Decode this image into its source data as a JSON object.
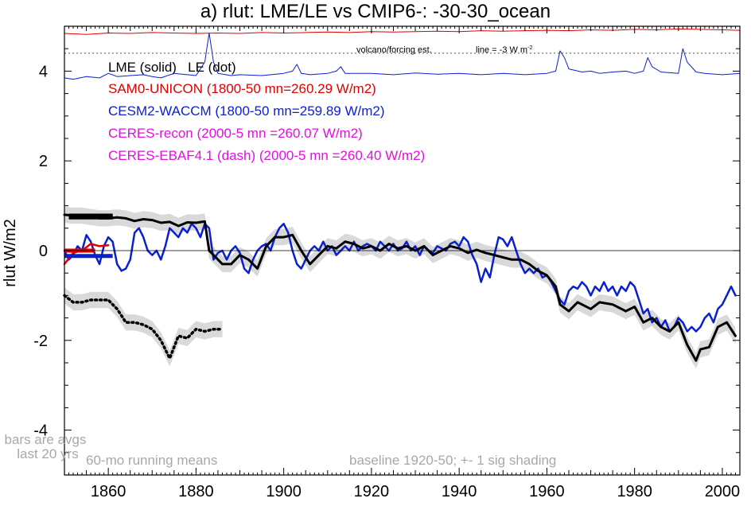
{
  "chart_data": {
    "type": "line",
    "title": "a) rlut: LME/LE vs CMIP6-: -30-30_ocean",
    "ylabel": "rlut W/m2",
    "xlabel": "",
    "xlim": [
      1850,
      2004
    ],
    "ylim": [
      -5,
      5
    ],
    "x_ticks": [
      1860,
      1880,
      1900,
      1920,
      1940,
      1960,
      1980,
      2000
    ],
    "y_ticks": [
      -4,
      -2,
      0,
      2,
      4
    ],
    "y_tick_labels": [
      "-4",
      "-2",
      "0",
      "2",
      "4"
    ],
    "grid": false,
    "legend": [
      {
        "label": "LME (solid)   LE (dot)",
        "color": "#000000"
      },
      {
        "label": "SAM0-UNICON (1800-50 mn=260.29 W/m2)",
        "color": "#e00000"
      },
      {
        "label": "CESM2-WACCM (1800-50 mn=259.89 W/m2)",
        "color": "#0a1fd0"
      },
      {
        "label": "CERES-recon (2000-5 mn =260.07 W/m2)",
        "color": "#e010e0"
      },
      {
        "label": "CERES-EBAF4.1 (dash) (2000-5 mn =260.40 W/m2)",
        "color": "#e010e0"
      }
    ],
    "annotations": {
      "volcano": "volcano/forcing est.",
      "line_scale": "line = -3 W m",
      "line_scale_sup": "-2",
      "bars_note_1": "bars are avgs",
      "bars_note_2": "last 20 yrs",
      "running": "60-mo running means",
      "baseline": "baseline 1920-50; +- 1 sig shading"
    },
    "reference_lines": {
      "zero": 0,
      "volcano_baseline": 4.4
    },
    "series": [
      {
        "name": "LME",
        "color": "#000000",
        "style": "solid",
        "x": [
          1850,
          1852,
          1854,
          1856,
          1858,
          1860,
          1862,
          1864,
          1866,
          1868,
          1870,
          1872,
          1874,
          1876,
          1878,
          1880,
          1882,
          1883,
          1884,
          1886,
          1888,
          1890,
          1892,
          1894,
          1896,
          1898,
          1900,
          1902,
          1904,
          1906,
          1908,
          1910,
          1912,
          1914,
          1916,
          1918,
          1920,
          1922,
          1924,
          1926,
          1928,
          1930,
          1932,
          1934,
          1936,
          1938,
          1940,
          1942,
          1944,
          1946,
          1948,
          1950,
          1952,
          1954,
          1956,
          1958,
          1960,
          1962,
          1963,
          1965,
          1967,
          1970,
          1972,
          1975,
          1978,
          1980,
          1982,
          1984,
          1986,
          1988,
          1990,
          1992,
          1994,
          1995,
          1997,
          1999,
          2001,
          2003
        ],
        "y": [
          0.8,
          0.78,
          0.78,
          0.75,
          0.72,
          0.72,
          0.74,
          0.72,
          0.66,
          0.7,
          0.68,
          0.62,
          0.64,
          0.55,
          0.63,
          0.62,
          0.65,
          0.0,
          -0.1,
          -0.3,
          -0.3,
          -0.1,
          -0.2,
          -0.4,
          0.1,
          0.3,
          0.3,
          0.35,
          0.0,
          -0.3,
          -0.1,
          0.1,
          0.05,
          0.2,
          0.15,
          0.05,
          0.1,
          0.0,
          0.15,
          0.05,
          0.1,
          0.0,
          0.1,
          -0.1,
          0.0,
          0.1,
          0.05,
          -0.05,
          0.02,
          -0.05,
          -0.1,
          -0.15,
          -0.2,
          -0.2,
          -0.3,
          -0.45,
          -0.55,
          -0.8,
          -1.2,
          -1.35,
          -1.15,
          -1.3,
          -1.15,
          -1.2,
          -1.35,
          -1.25,
          -1.6,
          -1.5,
          -1.7,
          -1.8,
          -1.6,
          -2.1,
          -2.45,
          -2.2,
          -2.15,
          -1.7,
          -1.6,
          -1.9
        ]
      },
      {
        "name": "LE",
        "color": "#000000",
        "style": "dotted",
        "x": [
          1850,
          1852,
          1854,
          1856,
          1858,
          1860,
          1861,
          1862,
          1864,
          1866,
          1868,
          1870,
          1872,
          1874,
          1876,
          1878,
          1880,
          1882,
          1884,
          1886
        ],
        "y": [
          -1.0,
          -1.15,
          -1.15,
          -1.1,
          -1.1,
          -1.1,
          -1.2,
          -1.3,
          -1.6,
          -1.6,
          -1.65,
          -1.75,
          -2.0,
          -2.4,
          -1.9,
          -1.95,
          -1.75,
          -1.8,
          -1.75,
          -1.75
        ]
      },
      {
        "name": "SAM0-UNICON",
        "color": "#e00000",
        "style": "solid",
        "x": [
          1850,
          1852,
          1854,
          1856,
          1858,
          1860
        ],
        "y": [
          -0.3,
          -0.05,
          0.0,
          0.15,
          0.1,
          0.12
        ]
      },
      {
        "name": "CESM2-WACCM",
        "color": "#0a1fd0",
        "style": "solid",
        "x": [
          1850,
          1851,
          1852,
          1853,
          1854,
          1855,
          1856,
          1857,
          1858,
          1859,
          1860,
          1861,
          1862,
          1863,
          1864,
          1865,
          1866,
          1867,
          1868,
          1869,
          1870,
          1871,
          1872,
          1873,
          1874,
          1875,
          1876,
          1877,
          1878,
          1879,
          1880,
          1881,
          1882,
          1883,
          1884,
          1885,
          1886,
          1887,
          1888,
          1889,
          1890,
          1891,
          1892,
          1893,
          1894,
          1895,
          1896,
          1897,
          1898,
          1899,
          1900,
          1901,
          1902,
          1903,
          1904,
          1905,
          1906,
          1907,
          1908,
          1909,
          1910,
          1911,
          1912,
          1913,
          1914,
          1915,
          1916,
          1917,
          1918,
          1919,
          1920,
          1921,
          1922,
          1923,
          1924,
          1925,
          1926,
          1927,
          1928,
          1929,
          1930,
          1931,
          1932,
          1933,
          1934,
          1935,
          1936,
          1937,
          1938,
          1939,
          1940,
          1941,
          1942,
          1943,
          1944,
          1945,
          1946,
          1947,
          1948,
          1949,
          1950,
          1951,
          1952,
          1953,
          1954,
          1955,
          1956,
          1957,
          1958,
          1959,
          1960,
          1961,
          1962,
          1963,
          1964,
          1965,
          1966,
          1967,
          1968,
          1969,
          1970,
          1971,
          1972,
          1973,
          1974,
          1975,
          1976,
          1977,
          1978,
          1979,
          1980,
          1981,
          1982,
          1983,
          1984,
          1985,
          1986,
          1987,
          1988,
          1989,
          1990,
          1991,
          1992,
          1993,
          1994,
          1995,
          1996,
          1997,
          1998,
          1999,
          2000,
          2001,
          2002,
          2003
        ],
        "y": [
          0.0,
          -0.2,
          -0.1,
          0.1,
          0.0,
          0.35,
          0.2,
          -0.1,
          -0.3,
          0.1,
          0.3,
          0.2,
          -0.3,
          -0.45,
          -0.4,
          -0.2,
          0.4,
          0.5,
          0.3,
          0.0,
          -0.1,
          0.0,
          -0.2,
          0.1,
          0.5,
          0.4,
          0.3,
          0.5,
          0.4,
          0.6,
          0.5,
          0.3,
          0.6,
          0.5,
          -0.2,
          -0.05,
          0.0,
          -0.2,
          0.0,
          0.1,
          -0.05,
          -0.4,
          -0.5,
          -0.2,
          0.0,
          0.1,
          0.15,
          0.0,
          0.3,
          0.5,
          0.6,
          0.4,
          0.0,
          -0.3,
          -0.4,
          -0.2,
          0.0,
          0.1,
          0.0,
          0.2,
          0.0,
          0.1,
          -0.1,
          0.0,
          0.1,
          0.0,
          0.2,
          0.0,
          0.1,
          0.15,
          0.1,
          0.0,
          0.2,
          0.1,
          0.0,
          0.15,
          0.0,
          0.05,
          0.2,
          0.0,
          0.1,
          -0.1,
          0.1,
          0.0,
          -0.05,
          0.1,
          0.05,
          0.0,
          0.15,
          0.2,
          0.1,
          0.3,
          0.2,
          -0.1,
          -0.3,
          -0.7,
          -0.4,
          -0.6,
          -0.1,
          0.3,
          0.25,
          0.1,
          0.3,
          0.0,
          -0.3,
          -0.5,
          -0.4,
          -0.5,
          -0.4,
          -0.6,
          -0.55,
          -0.7,
          -0.9,
          -1.1,
          -1.2,
          -0.9,
          -0.8,
          -0.85,
          -0.7,
          -0.8,
          -1.0,
          -0.8,
          -0.9,
          -0.7,
          -0.9,
          -0.8,
          -1.0,
          -0.8,
          -0.9,
          -0.7,
          -0.8,
          -1.1,
          -1.4,
          -1.3,
          -1.6,
          -1.5,
          -1.7,
          -1.55,
          -1.8,
          -1.7,
          -1.5,
          -1.6,
          -1.8,
          -1.7,
          -1.8,
          -1.7,
          -1.5,
          -1.4,
          -1.6,
          -1.3,
          -1.2,
          -1.0,
          -0.8,
          -1.0
        ]
      },
      {
        "name": "SAM0-UNICON volcano/forcing",
        "color": "#e00000",
        "style": "solid",
        "x": [
          1850,
          1855,
          1860,
          1865,
          1870,
          1875,
          1880,
          1885,
          1890,
          1895,
          1900,
          1905,
          1910,
          1915,
          1920,
          1925,
          1930,
          1935,
          1940,
          1945,
          1950,
          1955,
          1960,
          1965,
          1970,
          1975,
          1980,
          1985,
          1990,
          1995,
          2000,
          2004
        ],
        "y": [
          4.84,
          4.82,
          4.85,
          4.84,
          4.86,
          4.85,
          4.84,
          4.85,
          4.84,
          4.86,
          4.85,
          4.86,
          4.87,
          4.86,
          4.88,
          4.87,
          4.88,
          4.89,
          4.88,
          4.9,
          4.89,
          4.9,
          4.91,
          4.9,
          4.92,
          4.91,
          4.93,
          4.92,
          4.94,
          4.93,
          4.92,
          4.91
        ]
      },
      {
        "name": "CESM2-WACCM volcano/forcing",
        "color": "#0a1fd0",
        "style": "solid",
        "x": [
          1850,
          1852,
          1855,
          1858,
          1860,
          1862,
          1865,
          1868,
          1870,
          1872,
          1875,
          1878,
          1880,
          1882,
          1883,
          1884,
          1885,
          1888,
          1890,
          1895,
          1900,
          1902,
          1903,
          1904,
          1906,
          1910,
          1912,
          1913,
          1914,
          1920,
          1925,
          1930,
          1935,
          1940,
          1945,
          1950,
          1955,
          1960,
          1962,
          1963,
          1964,
          1965,
          1968,
          1970,
          1972,
          1975,
          1978,
          1980,
          1982,
          1983,
          1984,
          1986,
          1990,
          1991,
          1992,
          1994,
          1996,
          2000,
          2004
        ],
        "y": [
          3.85,
          3.82,
          3.88,
          3.85,
          3.95,
          3.88,
          3.9,
          3.92,
          3.88,
          3.85,
          3.95,
          3.92,
          3.9,
          4.2,
          4.85,
          4.2,
          3.95,
          3.9,
          3.92,
          3.9,
          3.95,
          4.0,
          4.15,
          3.95,
          3.92,
          3.95,
          4.0,
          4.1,
          3.95,
          3.95,
          3.92,
          3.96,
          3.93,
          3.95,
          3.92,
          3.95,
          3.92,
          3.95,
          4.0,
          4.45,
          4.3,
          4.05,
          3.98,
          4.0,
          3.95,
          3.98,
          4.0,
          3.95,
          4.0,
          4.3,
          4.1,
          3.98,
          3.95,
          4.5,
          4.2,
          3.98,
          3.95,
          3.92,
          3.95
        ]
      }
    ],
    "bars": [
      {
        "series": "LME",
        "y": 0.78,
        "x": [
          1851,
          1861
        ]
      },
      {
        "series": "LME",
        "y": 0.74,
        "x": [
          1851,
          1861
        ]
      },
      {
        "series": "SAM0-UNICON",
        "y": 0.0,
        "x": [
          1850,
          1857
        ]
      },
      {
        "series": "CESM2-WACCM",
        "y": -0.12,
        "x": [
          1850,
          1861
        ]
      }
    ]
  }
}
